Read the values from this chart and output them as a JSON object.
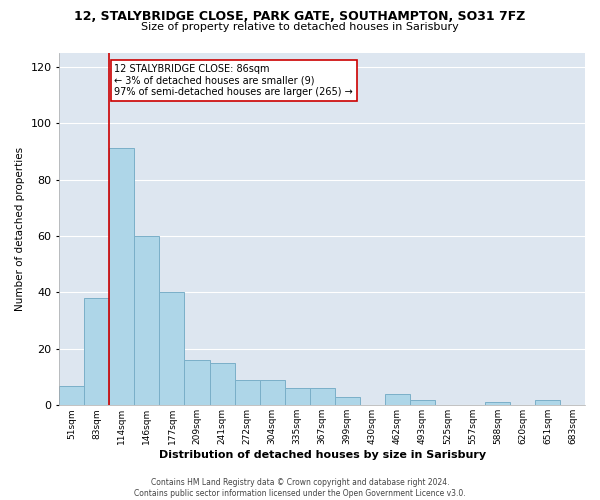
{
  "title_line1": "12, STALYBRIDGE CLOSE, PARK GATE, SOUTHAMPTON, SO31 7FZ",
  "title_line2": "Size of property relative to detached houses in Sarisbury",
  "xlabel": "Distribution of detached houses by size in Sarisbury",
  "ylabel": "Number of detached properties",
  "bar_labels": [
    "51sqm",
    "83sqm",
    "114sqm",
    "146sqm",
    "177sqm",
    "209sqm",
    "241sqm",
    "272sqm",
    "304sqm",
    "335sqm",
    "367sqm",
    "399sqm",
    "430sqm",
    "462sqm",
    "493sqm",
    "525sqm",
    "557sqm",
    "588sqm",
    "620sqm",
    "651sqm",
    "683sqm"
  ],
  "bar_values": [
    7,
    38,
    91,
    60,
    40,
    16,
    15,
    9,
    9,
    6,
    6,
    3,
    0,
    4,
    2,
    0,
    0,
    1,
    0,
    2,
    0
  ],
  "ylim": [
    0,
    125
  ],
  "yticks": [
    0,
    20,
    40,
    60,
    80,
    100,
    120
  ],
  "bar_color": "#aed6e8",
  "bar_edge_color": "#7aafc8",
  "bg_color": "#dde6f0",
  "grid_color": "#ffffff",
  "vline_color": "#cc0000",
  "vline_pos": 1.5,
  "annotation_text": "12 STALYBRIDGE CLOSE: 86sqm\n← 3% of detached houses are smaller (9)\n97% of semi-detached houses are larger (265) →",
  "annotation_box_color": "#ffffff",
  "annotation_box_edge": "#cc0000",
  "footer_line1": "Contains HM Land Registry data © Crown copyright and database right 2024.",
  "footer_line2": "Contains public sector information licensed under the Open Government Licence v3.0."
}
